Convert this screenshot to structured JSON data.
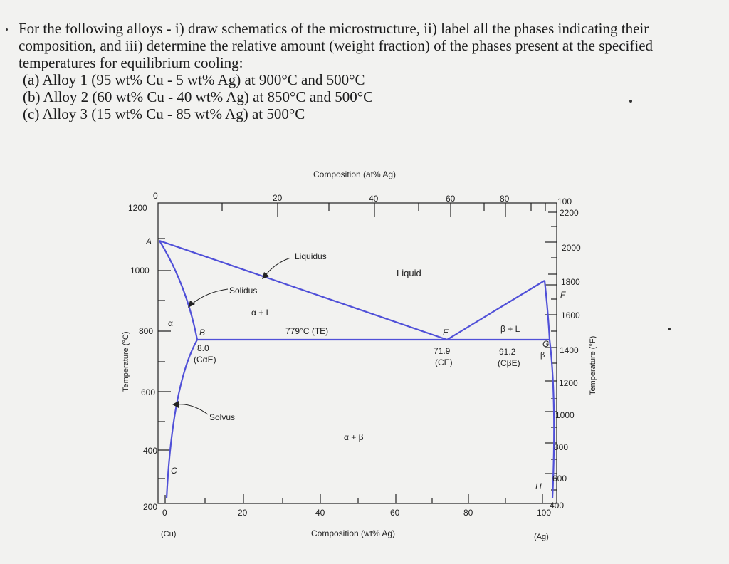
{
  "problem": {
    "intro": "For the following alloys - i) draw schematics of the microstructure, ii) label all the phases indicating their composition, and iii) determine the relative amount (weight fraction) of the phases present at the specified temperatures for equilibrium cooling:",
    "parts": [
      "(a) Alloy 1 (95 wt% Cu - 5 wt% Ag) at 900°C and 500°C",
      "(b) Alloy 2 (60 wt% Cu - 40 wt% Ag) at 850°C and 500°C",
      "(c) Alloy 3 (15 wt% Cu - 85 wt% Ag) at 500°C"
    ]
  },
  "diagram": {
    "top_axis_title": "Composition (at% Ag)",
    "bottom_axis_title": "Composition (wt% Ag)",
    "left_axis_title": "Temperature (°C)",
    "right_axis_title": "Temperature (°F)",
    "left_end_label": "(Cu)",
    "right_end_label": "(Ag)",
    "wt_ticks": [
      "0",
      "20",
      "40",
      "60",
      "80",
      "100"
    ],
    "at_ticks": [
      "0",
      "20",
      "40",
      "60",
      "80",
      "100"
    ],
    "celsius_ticks": [
      "1200",
      "1000",
      "800",
      "600",
      "400",
      "200"
    ],
    "fahrenheit_ticks": [
      "2200",
      "2000",
      "1800",
      "1600",
      "1400",
      "1200",
      "1000",
      "800",
      "600",
      "400"
    ],
    "point_labels": {
      "A": "A",
      "B": "B",
      "C": "C",
      "E": "E",
      "F": "F",
      "G": "G",
      "H": "H"
    },
    "region_labels": {
      "liquid": "Liquid",
      "alpha": "α",
      "beta": "β",
      "alpha_liquid": "α + L",
      "beta_liquid": "β + L",
      "alpha_beta": "α + β"
    },
    "line_labels": {
      "liquidus": "Liquidus",
      "solidus": "Solidus",
      "solvus": "Solvus"
    },
    "eutectic_temp_label": "779°C (TE)",
    "compositions": {
      "c_alpha_e_value": "8.0",
      "c_alpha_e_label": "(CαE)",
      "c_e_value": "71.9",
      "c_e_label": "(CE)",
      "c_beta_e_value": "91.2",
      "c_beta_e_label": "(CβE)"
    },
    "line_color": "#5050d8"
  }
}
